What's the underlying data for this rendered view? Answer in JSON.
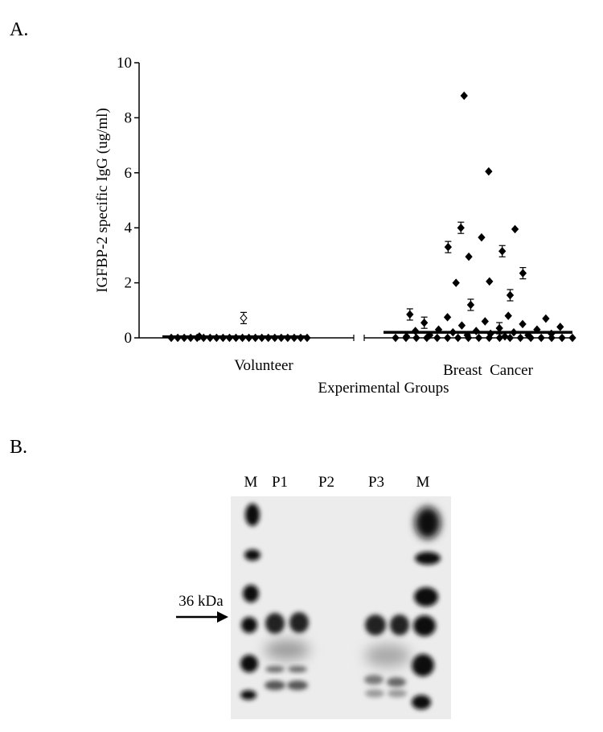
{
  "panel_a_label": "A.",
  "panel_b_label": "B.",
  "chart_data": {
    "type": "scatter",
    "xlabel": "Experimental Groups",
    "ylabel": "IGFBP-2 specific IgG (ug/ml)",
    "ylim": [
      0,
      10
    ],
    "yticks": [
      0,
      2,
      4,
      6,
      8,
      10
    ],
    "categories": [
      "Volunteer",
      "Breast  Cancer"
    ],
    "series": [
      {
        "category": "Volunteer",
        "values": [
          0.72,
          0.05,
          0.0,
          0.0,
          0.0,
          0.0,
          0.0,
          0.0,
          0.0,
          0.0,
          0.0,
          0.0,
          0.0,
          0.0,
          0.0,
          0.0,
          0.0,
          0.0,
          0.0,
          0.0,
          0.0,
          0.0,
          0.0,
          0.0
        ],
        "median": 0.04
      },
      {
        "category": "Breast  Cancer",
        "values": [
          8.8,
          6.05,
          4.0,
          3.95,
          3.65,
          3.3,
          3.15,
          2.95,
          2.35,
          2.05,
          2.0,
          1.55,
          1.2,
          0.85,
          0.8,
          0.75,
          0.7,
          0.6,
          0.55,
          0.5,
          0.45,
          0.4,
          0.35,
          0.3,
          0.3,
          0.25,
          0.25,
          0.2,
          0.2,
          0.15,
          0.15,
          0.1,
          0.1,
          0.1,
          0.05,
          0.05,
          0.0,
          0.0,
          0.0,
          0.0,
          0.0,
          0.0,
          0.0,
          0.0,
          0.0,
          0.0,
          0.0,
          0.0,
          0.0,
          0.0,
          0.0,
          0.0,
          0.0,
          0.0
        ],
        "median": 0.2
      }
    ]
  },
  "blot": {
    "lane_labels": [
      "M",
      "P1",
      "P2",
      "P3",
      "M"
    ],
    "marker_label": "36 kDa"
  }
}
